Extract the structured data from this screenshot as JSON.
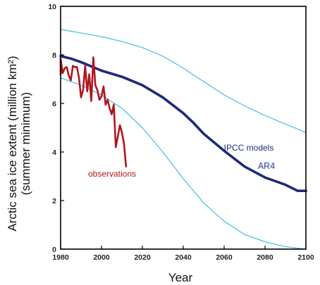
{
  "chart_data": {
    "type": "line",
    "xlabel": "Year",
    "ylabel_line1": "Arctic sea ice extent (million km²)",
    "ylabel_line2": "(summer minimum)",
    "xlim": [
      1980,
      2100
    ],
    "ylim": [
      0,
      10
    ],
    "x_ticks": [
      1980,
      2000,
      2020,
      2040,
      2060,
      2080,
      2100
    ],
    "y_ticks": [
      0,
      2,
      4,
      6,
      8,
      10
    ],
    "grid": false,
    "annotations": {
      "models": "IPCC models",
      "ar4": "AR4",
      "observations": "observations"
    },
    "colors": {
      "model_mean": "#1f2a78",
      "model_range": "#4cc3e8",
      "observations": "#b0161e"
    },
    "series": [
      {
        "key": "model_upper",
        "x": [
          1979,
          1990,
          2000,
          2010,
          2020,
          2030,
          2040,
          2050,
          2060,
          2070,
          2080,
          2090,
          2100
        ],
        "y": [
          9.05,
          8.9,
          8.75,
          8.55,
          8.3,
          7.95,
          7.45,
          6.9,
          6.35,
          5.9,
          5.5,
          5.15,
          4.8
        ]
      },
      {
        "key": "model_mean",
        "x": [
          1979,
          1985,
          1990,
          2000,
          2010,
          2020,
          2030,
          2040,
          2045,
          2050,
          2060,
          2070,
          2080,
          2090,
          2096,
          2100
        ],
        "y": [
          7.95,
          7.85,
          7.7,
          7.35,
          7.1,
          6.75,
          6.25,
          5.6,
          5.2,
          4.75,
          4.05,
          3.4,
          2.95,
          2.65,
          2.4,
          2.4
        ]
      },
      {
        "key": "model_lower",
        "x": [
          1979,
          1990,
          2000,
          2010,
          2020,
          2030,
          2040,
          2050,
          2060,
          2070,
          2080,
          2090,
          2100
        ],
        "y": [
          7.05,
          6.75,
          6.35,
          5.8,
          5.0,
          4.0,
          2.9,
          1.9,
          1.15,
          0.6,
          0.3,
          0.1,
          0.0
        ]
      },
      {
        "key": "observations",
        "x": [
          1979,
          1980,
          1981,
          1982,
          1983,
          1984,
          1985,
          1986,
          1987,
          1988,
          1989,
          1990,
          1991,
          1992,
          1993,
          1994,
          1995,
          1996,
          1997,
          1998,
          1999,
          2000,
          2001,
          2002,
          2003,
          2004,
          2005,
          2006,
          2007,
          2008,
          2009,
          2010,
          2011,
          2012
        ],
        "y": [
          7.2,
          7.85,
          7.25,
          7.45,
          7.5,
          7.15,
          6.95,
          7.55,
          7.5,
          7.5,
          7.05,
          6.25,
          6.55,
          7.55,
          6.5,
          7.2,
          6.1,
          7.9,
          6.75,
          6.55,
          6.15,
          6.3,
          6.7,
          5.95,
          6.15,
          5.8,
          5.55,
          5.95,
          4.2,
          4.65,
          5.1,
          4.8,
          4.35,
          3.4
        ]
      }
    ]
  }
}
